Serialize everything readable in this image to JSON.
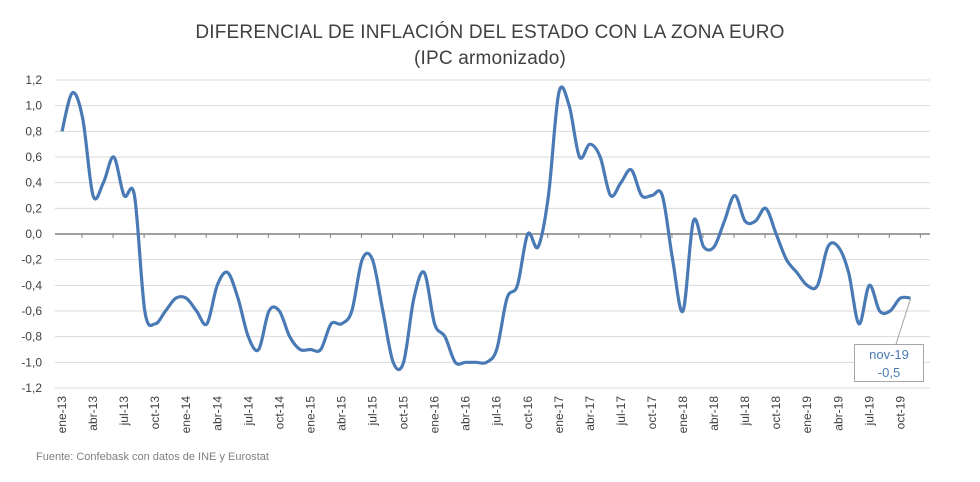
{
  "chart_data": {
    "type": "line",
    "title": "DIFERENCIAL DE INFLACIÓN DEL ESTADO CON LA ZONA EURO",
    "subtitle": "(IPC armonizado)",
    "xlabel": "",
    "ylabel": "",
    "ylim": [
      -1.2,
      1.2
    ],
    "yticks": [
      "1,2",
      "1,0",
      "0,8",
      "0,6",
      "0,4",
      "0,2",
      "0,0",
      "-0,2",
      "-0,4",
      "-0,6",
      "-0,8",
      "-1,0",
      "-1,2"
    ],
    "ytick_values": [
      1.2,
      1.0,
      0.8,
      0.6,
      0.4,
      0.2,
      0.0,
      -0.2,
      -0.4,
      -0.6,
      -0.8,
      -1.0,
      -1.2
    ],
    "xtick_labels": [
      "ene-13",
      "abr-13",
      "jul-13",
      "oct-13",
      "ene-14",
      "abr-14",
      "jul-14",
      "oct-14",
      "ene-15",
      "abr-15",
      "jul-15",
      "oct-15",
      "ene-16",
      "abr-16",
      "jul-16",
      "oct-16",
      "ene-17",
      "abr-17",
      "jul-17",
      "oct-17",
      "ene-18",
      "abr-18",
      "jul-18",
      "oct-18",
      "ene-19",
      "abr-19",
      "jul-19",
      "oct-19"
    ],
    "grid": true,
    "series": [
      {
        "color": "#4a7ab5",
        "values": [
          0.8,
          1.1,
          0.9,
          0.3,
          0.4,
          0.6,
          0.3,
          0.3,
          -0.6,
          -0.7,
          -0.6,
          -0.5,
          -0.5,
          -0.6,
          -0.7,
          -0.4,
          -0.3,
          -0.5,
          -0.8,
          -0.9,
          -0.6,
          -0.6,
          -0.8,
          -0.9,
          -0.9,
          -0.9,
          -0.7,
          -0.7,
          -0.6,
          -0.2,
          -0.2,
          -0.6,
          -1.0,
          -1.0,
          -0.5,
          -0.3,
          -0.7,
          -0.8,
          -1.0,
          -1.0,
          -1.0,
          -1.0,
          -0.9,
          -0.5,
          -0.4,
          0.0,
          -0.1,
          0.3,
          1.1,
          1.0,
          0.6,
          0.7,
          0.6,
          0.3,
          0.4,
          0.5,
          0.3,
          0.3,
          0.3,
          -0.2,
          -0.6,
          0.1,
          -0.1,
          -0.1,
          0.1,
          0.3,
          0.1,
          0.1,
          0.2,
          0.0,
          -0.2,
          -0.3,
          -0.4,
          -0.4,
          -0.1,
          -0.1,
          -0.3,
          -0.7,
          -0.4,
          -0.6,
          -0.6,
          -0.5,
          -0.5
        ]
      }
    ],
    "annotation": {
      "label": "nov-19",
      "value": "-0,5"
    },
    "source": "Fuente: Confebask con datos de INE y Eurostat"
  }
}
